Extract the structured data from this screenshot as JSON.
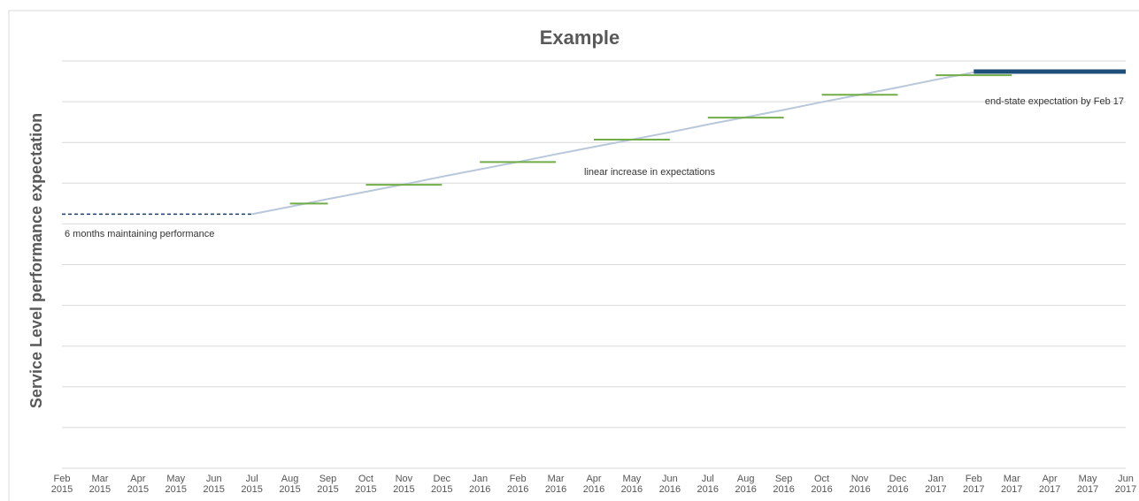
{
  "chart_data": {
    "type": "line",
    "title": "Example",
    "y_label": "Service Level performance expectation",
    "categories": [
      "Feb 2015",
      "Mar 2015",
      "Apr 2015",
      "May 2015",
      "Jun 2015",
      "Jul 2015",
      "Aug 2015",
      "Sep 2015",
      "Oct 2015",
      "Nov 2015",
      "Dec 2015",
      "Jan 2016",
      "Feb 2016",
      "Mar 2016",
      "Apr 2016",
      "May 2016",
      "Jun 2016",
      "Jul 2016",
      "Aug 2016",
      "Sep 2016",
      "Oct 2016",
      "Nov 2016",
      "Dec 2016",
      "Jan 2017",
      "Feb 2017",
      "Mar 2017",
      "Apr 2017",
      "May 2017",
      "Jun 2017"
    ],
    "ylim": [
      0,
      10
    ],
    "yticks": [
      0,
      1,
      2,
      3,
      4,
      5,
      6,
      7,
      8,
      9,
      10
    ],
    "grid": true,
    "series": [
      {
        "color": "#1f3f6e",
        "dashed": true,
        "values": [
          6.24,
          6.24,
          6.24,
          6.24,
          6.24,
          6.24,
          null,
          null,
          null,
          null,
          null,
          null,
          null,
          null,
          null,
          null,
          null,
          null,
          null,
          null,
          null,
          null,
          null,
          null,
          null,
          null,
          null,
          null,
          null
        ]
      },
      {
        "color": "#b8c7d9",
        "values": [
          null,
          null,
          null,
          null,
          null,
          6.24,
          6.42,
          6.61,
          6.79,
          6.97,
          7.16,
          7.34,
          7.52,
          7.71,
          7.89,
          8.07,
          8.25,
          8.44,
          8.62,
          8.8,
          8.99,
          9.17,
          9.35,
          9.54,
          9.72,
          null,
          null,
          null,
          null
        ]
      },
      {
        "color": "#70ad47",
        "values": [
          null,
          null,
          null,
          null,
          null,
          null,
          6.5,
          6.5,
          null,
          null,
          null,
          null,
          null,
          null,
          null,
          null,
          null,
          null,
          null,
          null,
          null,
          null,
          null,
          null,
          null,
          null,
          null,
          null,
          null
        ]
      },
      {
        "color": "#70ad47",
        "values": [
          null,
          null,
          null,
          null,
          null,
          null,
          null,
          null,
          6.96,
          6.96,
          6.96,
          null,
          null,
          null,
          null,
          null,
          null,
          null,
          null,
          null,
          null,
          null,
          null,
          null,
          null,
          null,
          null,
          null,
          null
        ]
      },
      {
        "color": "#70ad47",
        "values": [
          null,
          null,
          null,
          null,
          null,
          null,
          null,
          null,
          null,
          null,
          null,
          7.52,
          7.52,
          7.52,
          null,
          null,
          null,
          null,
          null,
          null,
          null,
          null,
          null,
          null,
          null,
          null,
          null,
          null,
          null
        ]
      },
      {
        "color": "#70ad47",
        "values": [
          null,
          null,
          null,
          null,
          null,
          null,
          null,
          null,
          null,
          null,
          null,
          null,
          null,
          null,
          8.07,
          8.07,
          8.07,
          null,
          null,
          null,
          null,
          null,
          null,
          null,
          null,
          null,
          null,
          null,
          null
        ]
      },
      {
        "color": "#70ad47",
        "values": [
          null,
          null,
          null,
          null,
          null,
          null,
          null,
          null,
          null,
          null,
          null,
          null,
          null,
          null,
          null,
          null,
          null,
          8.61,
          8.61,
          8.61,
          null,
          null,
          null,
          null,
          null,
          null,
          null,
          null,
          null
        ]
      },
      {
        "color": "#70ad47",
        "values": [
          null,
          null,
          null,
          null,
          null,
          null,
          null,
          null,
          null,
          null,
          null,
          null,
          null,
          null,
          null,
          null,
          null,
          null,
          null,
          null,
          9.17,
          9.17,
          9.17,
          null,
          null,
          null,
          null,
          null,
          null
        ]
      },
      {
        "color": "#70ad47",
        "values": [
          null,
          null,
          null,
          null,
          null,
          null,
          null,
          null,
          null,
          null,
          null,
          null,
          null,
          null,
          null,
          null,
          null,
          null,
          null,
          null,
          null,
          null,
          null,
          9.65,
          9.65,
          9.65,
          null,
          null,
          null
        ]
      },
      {
        "color": "#1f4e79",
        "thick": true,
        "values": [
          null,
          null,
          null,
          null,
          null,
          null,
          null,
          null,
          null,
          null,
          null,
          null,
          null,
          null,
          null,
          null,
          null,
          null,
          null,
          null,
          null,
          null,
          null,
          null,
          9.74,
          9.74,
          9.74,
          9.74,
          9.74
        ]
      }
    ],
    "annotations": [
      "6 months maintaining performance",
      "linear increase in expectations",
      "end-state expectation by Feb 17"
    ]
  }
}
